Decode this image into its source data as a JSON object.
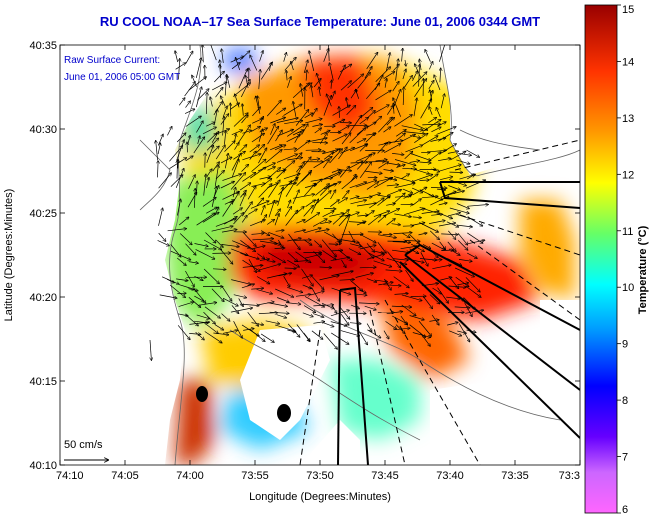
{
  "title": "RU COOL  NOAA–17  Sea Surface Temperature:  June 01, 2006 0344 GMT",
  "annotation": {
    "line1": "Raw Surface Current:",
    "line2": "June 01, 2006 05:00 GMT"
  },
  "scale_label": "50 cm/s",
  "axes": {
    "xlabel": "Longitude (Degrees:Minutes)",
    "ylabel": "Latitude (Degrees:Minutes)",
    "xticks": [
      "74:10",
      "74:05",
      "74:00",
      "73:55",
      "73:50",
      "73:45",
      "73:40",
      "73:35",
      "73:3"
    ],
    "yticks": [
      "40:35",
      "40:30",
      "40:25",
      "40:20",
      "40:15",
      "40:10"
    ]
  },
  "colorbar": {
    "label": "Temperature (°C)",
    "ticks": [
      "15",
      "14",
      "13",
      "12",
      "11",
      "10",
      "9",
      "8",
      "7",
      "6"
    ],
    "min": 6,
    "max": 15
  },
  "colors": {
    "title": "#0000cc",
    "land": "#ffffff",
    "coast": "#555555"
  }
}
